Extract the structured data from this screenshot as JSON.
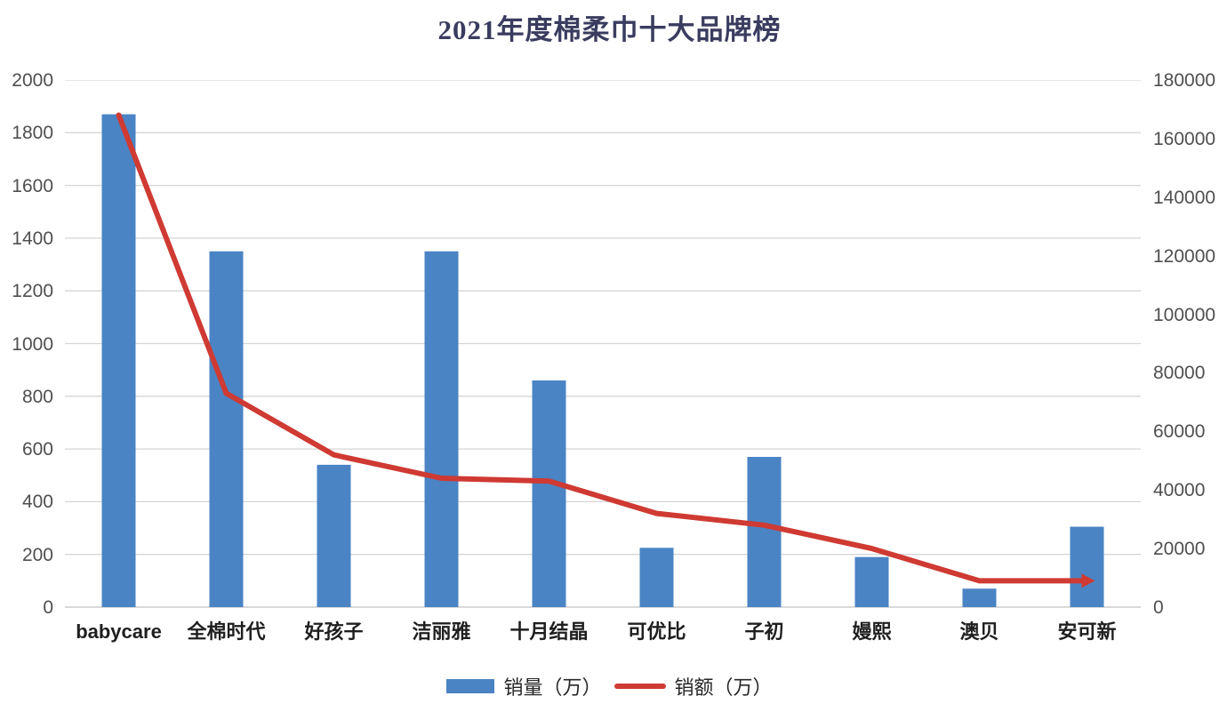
{
  "chart_data": {
    "type": "bar+line",
    "title": "2021年度棉柔巾十大品牌榜",
    "categories": [
      "babycare",
      "全棉时代",
      "好孩子",
      "洁丽雅",
      "十月结晶",
      "可优比",
      "子初",
      "嫚熙",
      "澳贝",
      "安可新"
    ],
    "series": [
      {
        "name": "销量（万）",
        "type": "bar",
        "axis": "left",
        "color": "#4a84c4",
        "values": [
          1870,
          1350,
          540,
          1350,
          860,
          225,
          570,
          190,
          70,
          305
        ]
      },
      {
        "name": "销额（万）",
        "type": "line",
        "axis": "right",
        "color": "#cf3a33",
        "line_end_arrow": true,
        "values": [
          168000,
          73000,
          52000,
          44000,
          43000,
          32000,
          28000,
          20000,
          9000,
          9000
        ]
      }
    ],
    "left_axis": {
      "min": 0,
      "max": 2000,
      "step": 200,
      "ticks": [
        "0",
        "200",
        "400",
        "600",
        "800",
        "1000",
        "1200",
        "1400",
        "1600",
        "1800",
        "2000"
      ]
    },
    "right_axis": {
      "min": 0,
      "max": 180000,
      "step": 20000,
      "ticks": [
        "0",
        "20000",
        "40000",
        "60000",
        "80000",
        "100000",
        "120000",
        "140000",
        "160000",
        "180000"
      ]
    },
    "grid": true,
    "legend_position": "bottom",
    "colors": {
      "bar": "#4a84c4",
      "line": "#cf3a33",
      "gridline": "#d6d6d6",
      "baseline": "#c2c2c2",
      "title_text": "#3a3c5f",
      "tick_text": "#4f4f4f",
      "category_text": "#1f1f1f"
    }
  },
  "legend": {
    "bar_label": "销量（万）",
    "line_label": "销额（万）"
  }
}
